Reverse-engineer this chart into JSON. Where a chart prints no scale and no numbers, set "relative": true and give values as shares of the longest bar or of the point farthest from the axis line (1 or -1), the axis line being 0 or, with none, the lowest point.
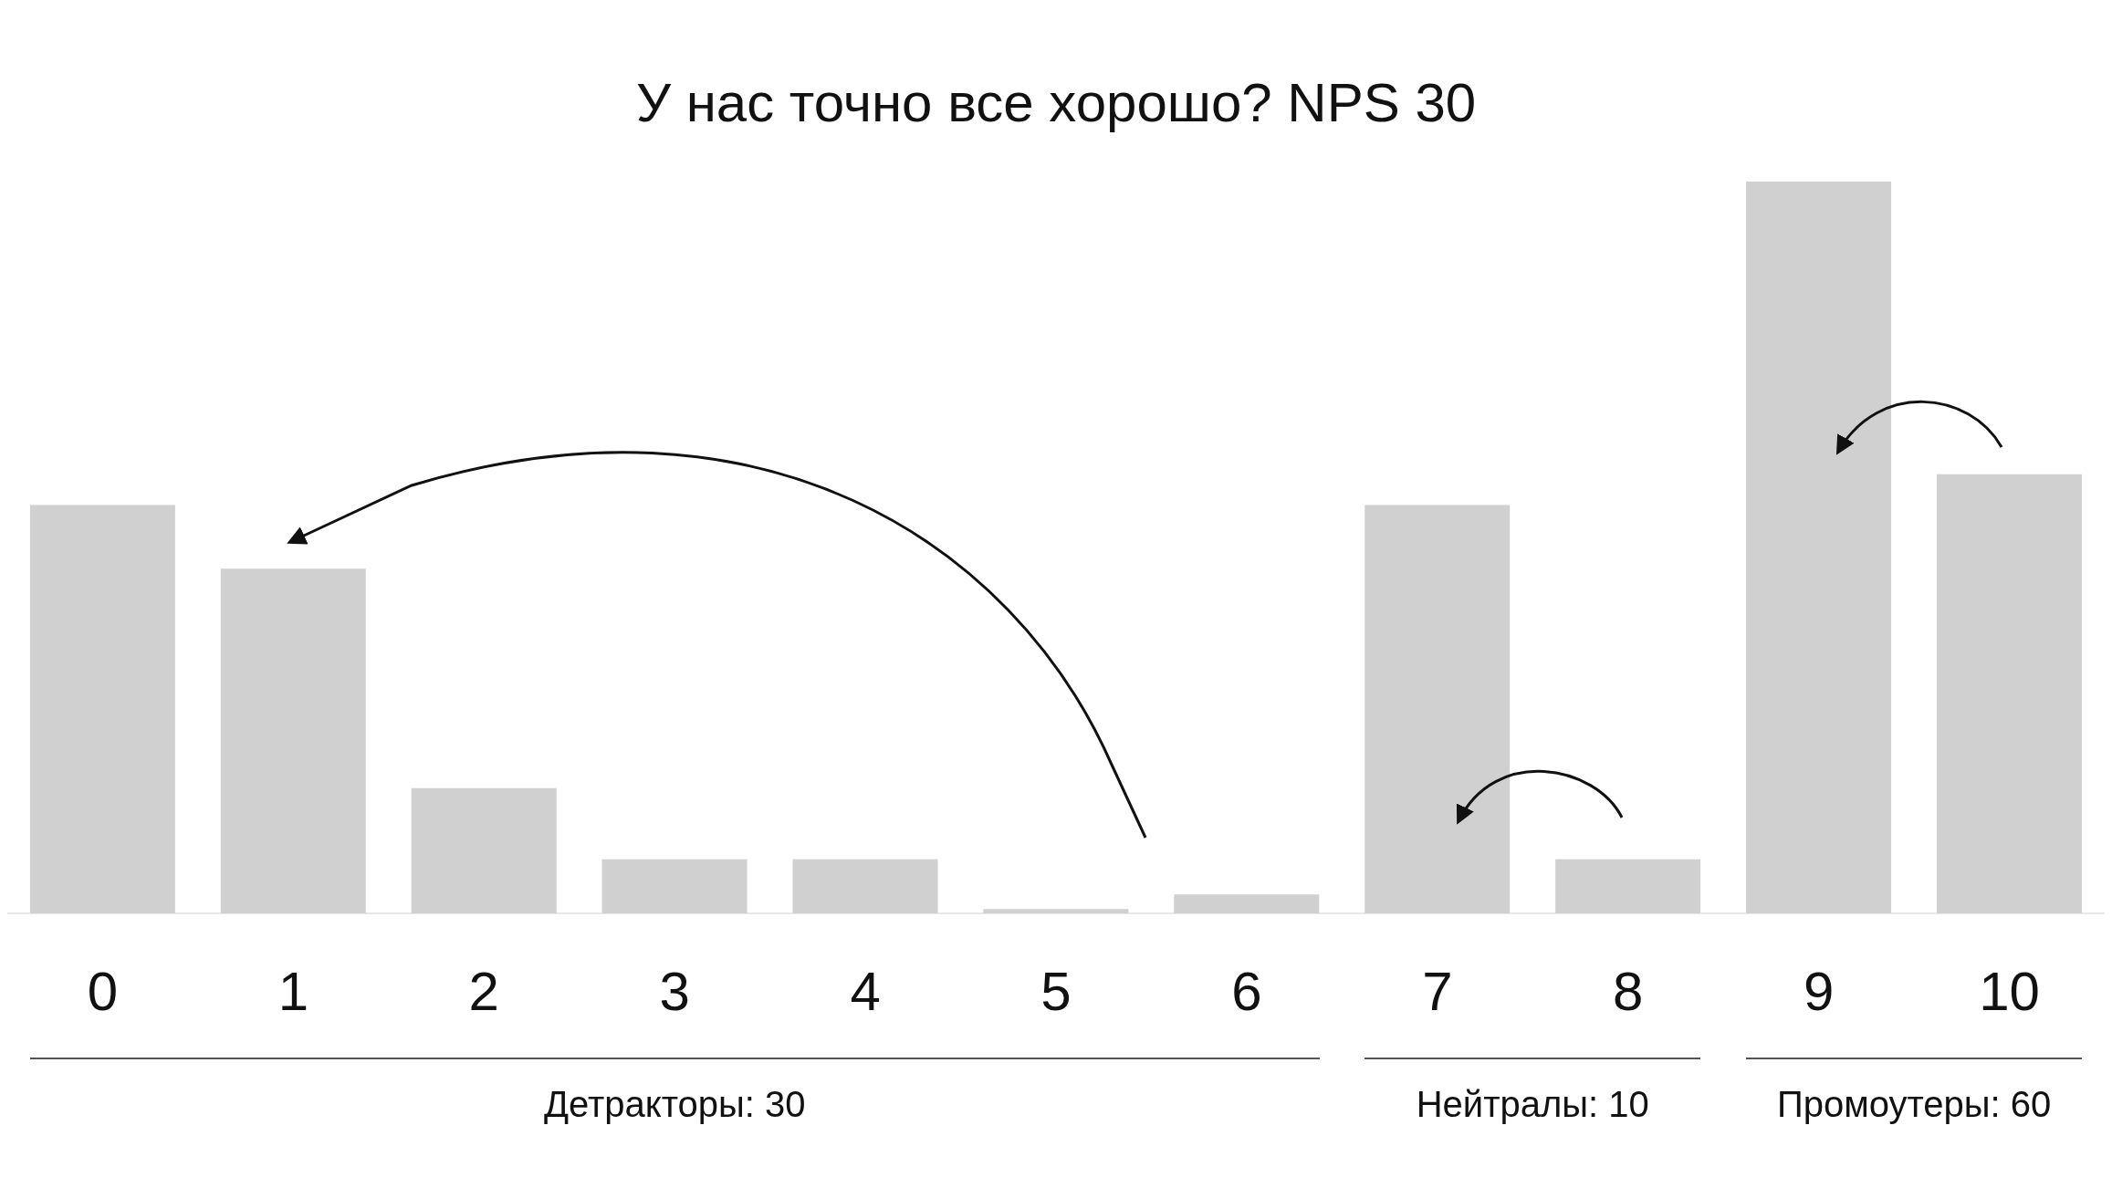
{
  "chart_data": {
    "type": "bar",
    "title": "У нас точно все хорошо? NPS 30",
    "categories": [
      "0",
      "1",
      "2",
      "3",
      "4",
      "5",
      "6",
      "7",
      "8",
      "9",
      "10"
    ],
    "values": [
      0.558,
      0.471,
      0.171,
      0.074,
      0.074,
      0.006,
      0.026,
      0.558,
      0.074,
      1,
      0.6
    ],
    "color": "#d0d0d0",
    "relative": true,
    "annotations": [
      "Детракторы: 30",
      "Нейтралы: 10",
      "Промоутеры: 60"
    ]
  }
}
